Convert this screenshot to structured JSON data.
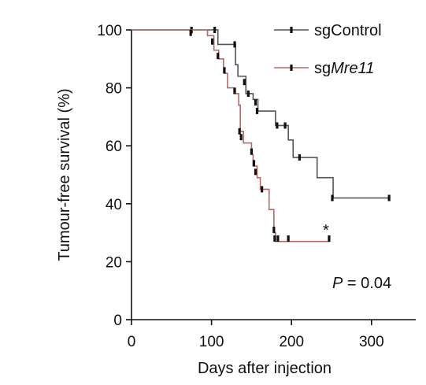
{
  "chart_data": {
    "type": "line",
    "title": "",
    "xlabel": "Days after injection",
    "ylabel": "Tumour-free survival (%)",
    "xlim": [
      0,
      350
    ],
    "ylim": [
      0,
      100
    ],
    "x_ticks": [
      0,
      100,
      200,
      300
    ],
    "y_ticks": [
      0,
      20,
      40,
      60,
      80,
      100
    ],
    "grid": false,
    "legend_position": "top-right",
    "series": [
      {
        "name_prefix": "sg",
        "name_suffix": "Control",
        "name_suffix_italic": false,
        "color": "#555555",
        "steps": [
          [
            0,
            100
          ],
          [
            108,
            95
          ],
          [
            130,
            88
          ],
          [
            133,
            84
          ],
          [
            143,
            78
          ],
          [
            152,
            76
          ],
          [
            158,
            72
          ],
          [
            180,
            67
          ],
          [
            196,
            62
          ],
          [
            202,
            56
          ],
          [
            220,
            56
          ],
          [
            232,
            49
          ],
          [
            252,
            42
          ],
          [
            322,
            42
          ]
        ],
        "censored": [
          [
            75,
            100
          ],
          [
            104,
            100
          ],
          [
            129,
            95
          ],
          [
            141,
            82
          ],
          [
            146,
            78
          ],
          [
            155,
            75
          ],
          [
            157,
            72
          ],
          [
            182,
            67
          ],
          [
            192,
            67
          ],
          [
            210,
            56
          ],
          [
            251,
            42
          ],
          [
            322,
            42
          ]
        ]
      },
      {
        "name_prefix": "sg",
        "name_suffix": "Mre11",
        "name_suffix_italic": true,
        "color": "#b56a6a",
        "steps": [
          [
            0,
            100
          ],
          [
            95,
            98
          ],
          [
            103,
            93
          ],
          [
            109,
            90
          ],
          [
            115,
            87
          ],
          [
            117,
            85
          ],
          [
            120,
            80
          ],
          [
            128,
            78
          ],
          [
            134,
            74
          ],
          [
            136,
            65
          ],
          [
            140,
            61
          ],
          [
            150,
            57
          ],
          [
            152,
            53
          ],
          [
            157,
            49
          ],
          [
            161,
            45
          ],
          [
            172,
            38
          ],
          [
            178,
            30
          ],
          [
            180,
            27
          ],
          [
            248,
            27
          ]
        ],
        "censored": [
          [
            74,
            99
          ],
          [
            101,
            96
          ],
          [
            108,
            91
          ],
          [
            116,
            86
          ],
          [
            129,
            79
          ],
          [
            135,
            65
          ],
          [
            137,
            63
          ],
          [
            150,
            58
          ],
          [
            153,
            54
          ],
          [
            155,
            51
          ],
          [
            163,
            45
          ],
          [
            178,
            31
          ],
          [
            179,
            28
          ],
          [
            183,
            28
          ],
          [
            196,
            28
          ],
          [
            247,
            28
          ]
        ]
      }
    ],
    "annotations": {
      "star": "*",
      "star_at": [
        243,
        31
      ],
      "p_value_italic": "P",
      "p_value_rest": " = 0.04"
    }
  }
}
